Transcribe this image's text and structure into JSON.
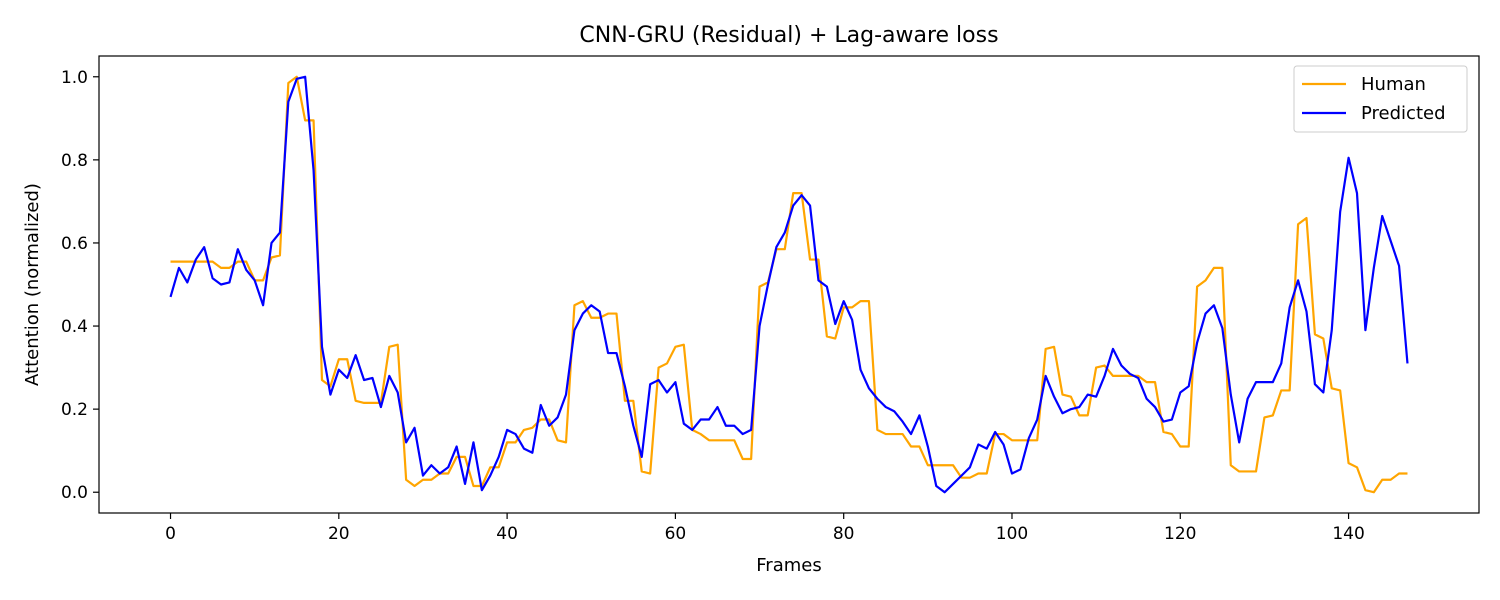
{
  "chart_data": {
    "type": "line",
    "title": "CNN-GRU (Residual) + Lag-aware loss",
    "xlabel": "Frames",
    "ylabel": "Attention (normalized)",
    "xlim": [
      -8.5,
      155.5
    ],
    "ylim": [
      -0.05,
      1.05
    ],
    "xticks": [
      0,
      20,
      40,
      60,
      80,
      100,
      120,
      140
    ],
    "yticks": [
      0.0,
      0.2,
      0.4,
      0.6,
      0.8,
      1.0
    ],
    "ytick_labels": [
      "0.0",
      "0.2",
      "0.4",
      "0.6",
      "0.8",
      "1.0"
    ],
    "grid": false,
    "legend": "top-right",
    "series": [
      {
        "name": "Human",
        "color": "#FFA500",
        "values": [
          0.555,
          0.555,
          0.555,
          0.555,
          0.555,
          0.555,
          0.54,
          0.54,
          0.555,
          0.555,
          0.51,
          0.51,
          0.565,
          0.57,
          0.985,
          1.0,
          0.895,
          0.895,
          0.27,
          0.255,
          0.32,
          0.32,
          0.22,
          0.215,
          0.215,
          0.215,
          0.35,
          0.355,
          0.03,
          0.015,
          0.03,
          0.03,
          0.045,
          0.045,
          0.085,
          0.085,
          0.015,
          0.015,
          0.06,
          0.06,
          0.12,
          0.12,
          0.15,
          0.155,
          0.175,
          0.175,
          0.125,
          0.12,
          0.45,
          0.46,
          0.42,
          0.42,
          0.43,
          0.43,
          0.22,
          0.22,
          0.05,
          0.045,
          0.3,
          0.31,
          0.35,
          0.355,
          0.15,
          0.14,
          0.125,
          0.125,
          0.125,
          0.125,
          0.08,
          0.08,
          0.495,
          0.505,
          0.585,
          0.585,
          0.72,
          0.72,
          0.56,
          0.56,
          0.375,
          0.37,
          0.445,
          0.445,
          0.46,
          0.46,
          0.15,
          0.14,
          0.14,
          0.14,
          0.11,
          0.11,
          0.065,
          0.065,
          0.065,
          0.065,
          0.035,
          0.035,
          0.045,
          0.045,
          0.14,
          0.14,
          0.125,
          0.125,
          0.125,
          0.125,
          0.345,
          0.35,
          0.235,
          0.23,
          0.185,
          0.185,
          0.3,
          0.305,
          0.28,
          0.28,
          0.28,
          0.28,
          0.265,
          0.265,
          0.145,
          0.14,
          0.11,
          0.11,
          0.495,
          0.51,
          0.54,
          0.54,
          0.065,
          0.05,
          0.05,
          0.05,
          0.18,
          0.185,
          0.245,
          0.245,
          0.645,
          0.66,
          0.38,
          0.37,
          0.25,
          0.245,
          0.07,
          0.06,
          0.005,
          0.0,
          0.03,
          0.03,
          0.045,
          0.045
        ]
      },
      {
        "name": "Predicted",
        "color": "#0000FF",
        "values": [
          0.47,
          0.54,
          0.505,
          0.56,
          0.59,
          0.515,
          0.5,
          0.505,
          0.585,
          0.535,
          0.51,
          0.45,
          0.6,
          0.625,
          0.94,
          0.995,
          1.0,
          0.775,
          0.35,
          0.235,
          0.295,
          0.275,
          0.33,
          0.27,
          0.275,
          0.205,
          0.28,
          0.24,
          0.12,
          0.155,
          0.04,
          0.065,
          0.045,
          0.06,
          0.11,
          0.02,
          0.12,
          0.005,
          0.04,
          0.085,
          0.15,
          0.14,
          0.105,
          0.095,
          0.21,
          0.16,
          0.18,
          0.235,
          0.39,
          0.43,
          0.45,
          0.435,
          0.335,
          0.335,
          0.255,
          0.16,
          0.085,
          0.26,
          0.27,
          0.24,
          0.265,
          0.165,
          0.15,
          0.175,
          0.175,
          0.205,
          0.16,
          0.16,
          0.14,
          0.15,
          0.4,
          0.5,
          0.59,
          0.625,
          0.69,
          0.715,
          0.69,
          0.51,
          0.495,
          0.405,
          0.46,
          0.415,
          0.295,
          0.25,
          0.225,
          0.205,
          0.195,
          0.17,
          0.14,
          0.185,
          0.11,
          0.015,
          0.0,
          0.02,
          0.04,
          0.06,
          0.115,
          0.105,
          0.145,
          0.115,
          0.045,
          0.055,
          0.13,
          0.175,
          0.28,
          0.23,
          0.19,
          0.2,
          0.205,
          0.235,
          0.23,
          0.28,
          0.345,
          0.305,
          0.285,
          0.275,
          0.225,
          0.205,
          0.17,
          0.175,
          0.24,
          0.255,
          0.36,
          0.43,
          0.45,
          0.395,
          0.235,
          0.12,
          0.225,
          0.265,
          0.265,
          0.265,
          0.31,
          0.445,
          0.51,
          0.435,
          0.26,
          0.24,
          0.39,
          0.675,
          0.805,
          0.72,
          0.39,
          0.54,
          0.665,
          0.605,
          0.545,
          0.31
        ]
      }
    ]
  }
}
